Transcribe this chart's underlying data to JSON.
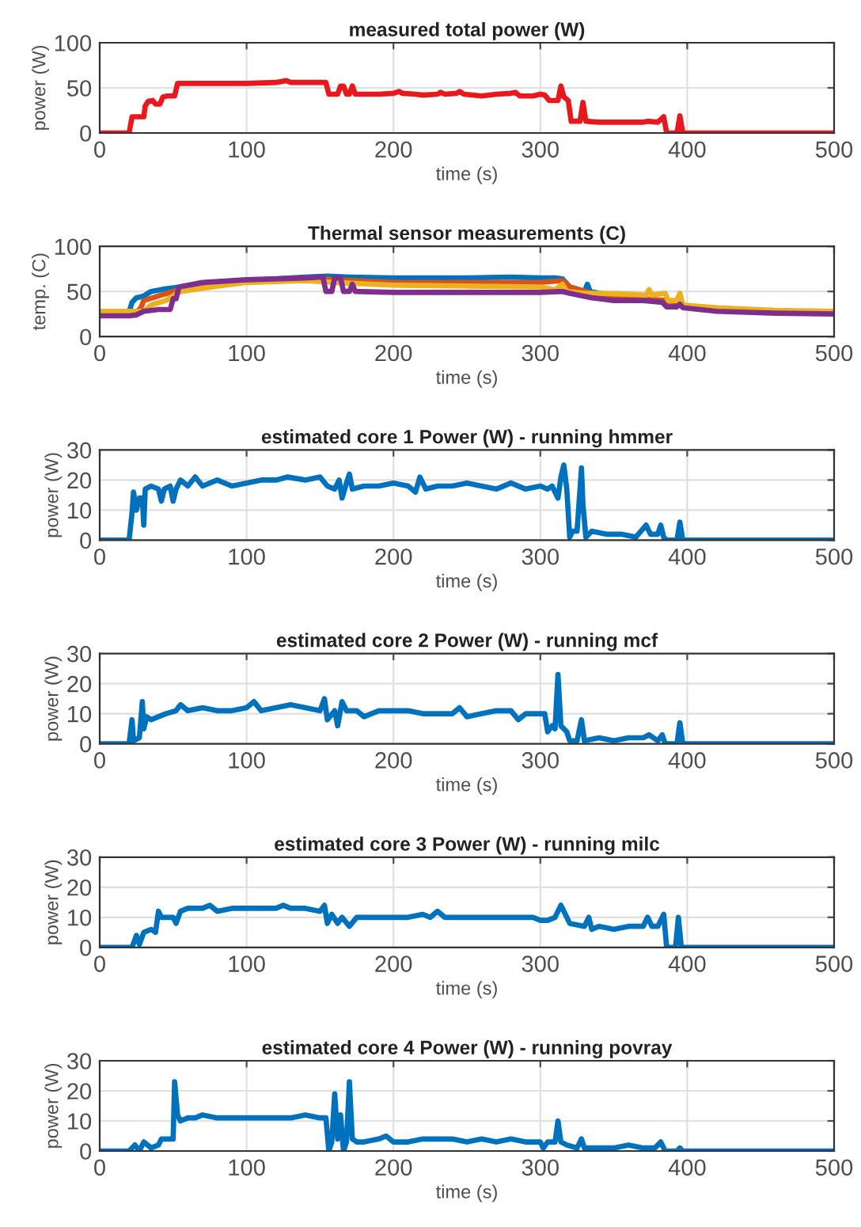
{
  "chart_data": [
    {
      "type": "line",
      "title": "measured total power (W)",
      "xlabel": "time (s)",
      "ylabel": "power (W)",
      "xlim": [
        0,
        500
      ],
      "xticks": [
        0,
        100,
        200,
        300,
        400,
        500
      ],
      "ylim": [
        0,
        100
      ],
      "yticks": [
        0,
        50,
        100
      ],
      "grid": true,
      "series": [
        {
          "color": "#e8191e",
          "x": [
            0,
            20,
            22,
            28,
            30,
            31,
            33,
            36,
            38,
            41,
            43,
            46,
            51,
            53,
            60,
            80,
            100,
            120,
            127,
            130,
            150,
            154,
            156,
            162,
            164,
            166,
            168,
            170,
            172,
            174,
            190,
            200,
            204,
            206,
            215,
            220,
            230,
            232,
            235,
            243,
            245,
            248,
            260,
            270,
            280,
            283,
            286,
            295,
            300,
            303,
            306,
            312,
            314,
            316,
            319,
            321,
            327,
            329,
            331,
            340,
            360,
            370,
            373,
            380,
            384,
            386,
            393,
            395,
            397,
            500
          ],
          "values": [
            0,
            0,
            18,
            18,
            18,
            30,
            35,
            36,
            32,
            32,
            40,
            41,
            41,
            55,
            55,
            55,
            55,
            56,
            58,
            56,
            56,
            56,
            43,
            43,
            52,
            52,
            43,
            43,
            52,
            43,
            43,
            44,
            46,
            44,
            43,
            42,
            43,
            45,
            43,
            44,
            46,
            43,
            41,
            43,
            44,
            45,
            41,
            41,
            43,
            42,
            36,
            36,
            52,
            40,
            36,
            13,
            13,
            34,
            13,
            12,
            12,
            12,
            13,
            12,
            18,
            0,
            0,
            19,
            0,
            0
          ]
        }
      ]
    },
    {
      "type": "line",
      "title": "Thermal sensor measurements (C)",
      "xlabel": "time (s)",
      "ylabel": "temp. (C)",
      "xlim": [
        0,
        500
      ],
      "xticks": [
        0,
        100,
        200,
        300,
        400,
        500
      ],
      "ylim": [
        0,
        100
      ],
      "yticks": [
        0,
        50,
        100
      ],
      "grid": true,
      "series": [
        {
          "color": "#0072bd",
          "x": [
            0,
            20,
            22,
            25,
            30,
            35,
            45,
            60,
            80,
            100,
            120,
            140,
            155,
            170,
            200,
            250,
            280,
            300,
            310,
            315,
            320,
            330,
            332,
            334,
            350,
            370
          ],
          "values": [
            27,
            27,
            38,
            43,
            45,
            50,
            53,
            56,
            60,
            62,
            64,
            66,
            67,
            66,
            65,
            65,
            66,
            65,
            65,
            64,
            55,
            50,
            58,
            50,
            45,
            42
          ]
        },
        {
          "color": "#d95319",
          "x": [
            0,
            25,
            28,
            30,
            40,
            50,
            60,
            80,
            100,
            140,
            160,
            200,
            250,
            300,
            315,
            320,
            335,
            350,
            370,
            385,
            387,
            395,
            398,
            420,
            460,
            500
          ],
          "values": [
            27,
            27,
            32,
            40,
            45,
            50,
            55,
            60,
            62,
            65,
            63,
            60,
            60,
            60,
            62,
            55,
            48,
            43,
            42,
            40,
            33,
            37,
            33,
            30,
            28,
            27
          ]
        },
        {
          "color": "#edb120",
          "x": [
            0,
            30,
            35,
            45,
            55,
            80,
            100,
            140,
            160,
            200,
            250,
            300,
            310,
            315,
            318,
            330,
            340,
            360,
            372,
            374,
            376,
            385,
            387,
            393,
            395,
            397,
            420,
            460,
            500
          ],
          "values": [
            28,
            28,
            35,
            40,
            50,
            56,
            60,
            62,
            60,
            57,
            56,
            55,
            52,
            58,
            50,
            48,
            48,
            47,
            46,
            52,
            46,
            48,
            40,
            40,
            48,
            35,
            32,
            29,
            28
          ]
        },
        {
          "color": "#7e2f8e",
          "x": [
            0,
            20,
            25,
            30,
            40,
            48,
            50,
            52,
            54,
            70,
            100,
            140,
            152,
            154,
            158,
            160,
            164,
            166,
            170,
            172,
            174,
            200,
            250,
            300,
            315,
            320,
            335,
            350,
            370,
            383,
            386,
            393,
            395,
            397,
            420,
            460,
            500
          ],
          "values": [
            23,
            23,
            24,
            28,
            30,
            30,
            42,
            42,
            55,
            60,
            63,
            65,
            66,
            50,
            50,
            65,
            65,
            50,
            50,
            58,
            50,
            49,
            49,
            49,
            50,
            48,
            43,
            40,
            40,
            38,
            33,
            33,
            36,
            32,
            28,
            26,
            25
          ]
        }
      ]
    },
    {
      "type": "line",
      "title": "estimated core 1 Power (W) - running hmmer",
      "xlabel": "time (s)",
      "ylabel": "power (W)",
      "xlim": [
        0,
        500
      ],
      "xticks": [
        0,
        100,
        200,
        300,
        400,
        500
      ],
      "ylim": [
        0,
        30
      ],
      "yticks": [
        0,
        10,
        20,
        30
      ],
      "grid": true,
      "series": [
        {
          "color": "#0072bd",
          "x": [
            0,
            20,
            22,
            23,
            25,
            27,
            29,
            30,
            31,
            35,
            40,
            42,
            44,
            48,
            50,
            52,
            55,
            60,
            65,
            70,
            80,
            90,
            100,
            110,
            120,
            128,
            140,
            150,
            155,
            160,
            163,
            165,
            168,
            170,
            172,
            180,
            190,
            200,
            210,
            215,
            218,
            222,
            230,
            240,
            250,
            260,
            270,
            280,
            290,
            300,
            305,
            308,
            312,
            314,
            316,
            318,
            320,
            322,
            325,
            328,
            329,
            331,
            335,
            345,
            355,
            365,
            372,
            375,
            380,
            382,
            384,
            386,
            393,
            395,
            397,
            500
          ],
          "values": [
            0,
            0,
            9,
            16,
            10,
            14,
            14,
            5,
            17,
            18,
            17,
            13,
            17,
            18,
            13,
            17,
            20,
            18,
            21,
            18,
            20,
            18,
            19,
            20,
            20,
            21,
            20,
            21,
            18,
            17,
            20,
            14,
            19,
            22,
            17,
            18,
            18,
            19,
            18,
            16,
            21,
            17,
            18,
            18,
            19,
            18,
            17,
            19,
            17,
            18,
            17,
            18,
            14,
            21,
            25,
            17,
            1,
            3,
            3,
            24,
            12,
            1,
            3,
            2,
            2,
            1,
            5,
            2,
            2,
            5,
            1,
            0,
            0,
            6,
            0,
            0
          ]
        }
      ]
    },
    {
      "type": "line",
      "title": "estimated core 2 Power (W) - running mcf",
      "xlabel": "time (s)",
      "ylabel": "power (W)",
      "xlim": [
        0,
        500
      ],
      "xticks": [
        0,
        100,
        200,
        300,
        400,
        500
      ],
      "ylim": [
        0,
        30
      ],
      "yticks": [
        0,
        10,
        20,
        30
      ],
      "grid": true,
      "series": [
        {
          "color": "#0072bd",
          "x": [
            0,
            20,
            22,
            23,
            27,
            29,
            30,
            32,
            35,
            40,
            45,
            52,
            55,
            60,
            70,
            80,
            90,
            100,
            105,
            110,
            120,
            130,
            140,
            150,
            153,
            155,
            160,
            162,
            165,
            168,
            175,
            180,
            190,
            200,
            210,
            220,
            230,
            240,
            245,
            250,
            260,
            270,
            280,
            285,
            290,
            300,
            303,
            305,
            308,
            310,
            312,
            314,
            318,
            320,
            325,
            328,
            330,
            340,
            350,
            360,
            370,
            374,
            380,
            383,
            385,
            393,
            395,
            397,
            500
          ],
          "values": [
            0,
            0,
            8,
            1,
            2,
            14,
            5,
            9,
            8,
            9,
            10,
            11,
            13,
            11,
            12,
            11,
            11,
            12,
            14,
            11,
            12,
            13,
            12,
            11,
            15,
            8,
            11,
            6,
            14,
            11,
            11,
            9,
            11,
            11,
            11,
            10,
            10,
            10,
            12,
            9,
            10,
            11,
            11,
            8,
            10,
            10,
            10,
            4,
            6,
            5,
            23,
            6,
            4,
            1,
            1,
            8,
            1,
            2,
            1,
            2,
            2,
            3,
            1,
            3,
            0,
            0,
            7,
            0,
            0
          ]
        }
      ]
    },
    {
      "type": "line",
      "title": "estimated core 3 Power (W) - running milc",
      "xlabel": "time (s)",
      "ylabel": "power (W)",
      "xlim": [
        0,
        500
      ],
      "xticks": [
        0,
        100,
        200,
        300,
        400,
        500
      ],
      "ylim": [
        0,
        30
      ],
      "yticks": [
        0,
        10,
        20,
        30
      ],
      "grid": true,
      "series": [
        {
          "color": "#0072bd",
          "x": [
            0,
            22,
            25,
            27,
            30,
            35,
            38,
            40,
            42,
            50,
            52,
            55,
            60,
            70,
            75,
            80,
            90,
            100,
            110,
            120,
            125,
            130,
            140,
            150,
            153,
            155,
            158,
            162,
            165,
            170,
            175,
            180,
            190,
            200,
            210,
            220,
            225,
            230,
            235,
            245,
            255,
            265,
            275,
            285,
            295,
            300,
            305,
            310,
            314,
            318,
            320,
            330,
            333,
            335,
            340,
            350,
            360,
            370,
            373,
            376,
            380,
            384,
            386,
            392,
            394,
            396,
            500
          ],
          "values": [
            0,
            0,
            4,
            1,
            5,
            6,
            5,
            12,
            10,
            10,
            8,
            12,
            13,
            13,
            14,
            12,
            13,
            13,
            13,
            13,
            14,
            13,
            13,
            12,
            14,
            8,
            11,
            8,
            10,
            7,
            10,
            10,
            10,
            10,
            10,
            11,
            10,
            12,
            10,
            10,
            10,
            10,
            10,
            10,
            10,
            9,
            9,
            10,
            14,
            10,
            8,
            7,
            10,
            6,
            7,
            6,
            7,
            7,
            10,
            7,
            7,
            11,
            0,
            0,
            10,
            0,
            0
          ]
        }
      ]
    },
    {
      "type": "line",
      "title": "estimated core 4 Power (W) - running povray",
      "xlabel": "time (s)",
      "ylabel": "power (W)",
      "xlim": [
        0,
        500
      ],
      "xticks": [
        0,
        100,
        200,
        300,
        400,
        500
      ],
      "ylim": [
        0,
        30
      ],
      "yticks": [
        0,
        10,
        20,
        30
      ],
      "grid": true,
      "series": [
        {
          "color": "#0072bd",
          "x": [
            0,
            20,
            24,
            27,
            30,
            35,
            40,
            42,
            47,
            50,
            51,
            53,
            55,
            60,
            65,
            70,
            80,
            90,
            100,
            110,
            120,
            130,
            140,
            150,
            154,
            156,
            158,
            160,
            162,
            164,
            166,
            168,
            170,
            172,
            175,
            180,
            190,
            195,
            200,
            210,
            220,
            230,
            240,
            250,
            260,
            270,
            280,
            290,
            300,
            302,
            305,
            310,
            312,
            314,
            318,
            325,
            328,
            330,
            340,
            350,
            360,
            370,
            378,
            382,
            385,
            393,
            395,
            397,
            500
          ],
          "values": [
            0,
            0,
            2,
            0,
            3,
            1,
            2,
            4,
            4,
            4,
            23,
            12,
            10,
            11,
            11,
            12,
            11,
            11,
            11,
            11,
            11,
            11,
            12,
            11,
            11,
            0,
            3,
            19,
            4,
            12,
            0,
            3,
            23,
            4,
            3,
            3,
            4,
            5,
            3,
            3,
            4,
            4,
            4,
            3,
            4,
            3,
            4,
            3,
            3,
            1,
            3,
            3,
            10,
            3,
            2,
            1,
            4,
            1,
            1,
            1,
            2,
            1,
            1,
            3,
            0,
            0,
            1,
            0,
            0
          ]
        }
      ]
    }
  ]
}
